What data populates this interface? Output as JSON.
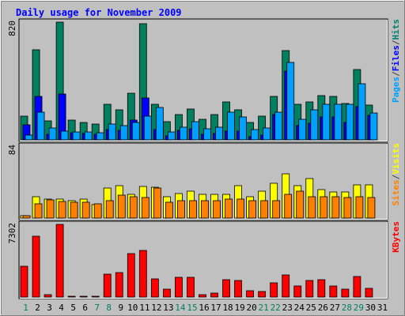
{
  "chart_data": {
    "type": "bar",
    "title": "Daily usage for November 2009",
    "days": [
      "1",
      "2",
      "3",
      "4",
      "5",
      "6",
      "7",
      "8",
      "9",
      "10",
      "11",
      "12",
      "13",
      "14",
      "15",
      "16",
      "17",
      "18",
      "19",
      "20",
      "21",
      "22",
      "23",
      "24",
      "25",
      "26",
      "27",
      "28",
      "29",
      "30",
      "31"
    ],
    "weekend_days": [
      "1",
      "7",
      "8",
      "14",
      "15",
      "21",
      "22",
      "28",
      "29"
    ],
    "panels": [
      {
        "name": "hits-files-pages",
        "scale_label": "820",
        "ymax": 820,
        "right_label": [
          "Pages",
          "/",
          "Files",
          "/",
          "Hits"
        ],
        "right_label_colors": [
          "#00a0ff",
          "#404040",
          "#0000ff",
          "#404040",
          "#00806f"
        ],
        "series": [
          {
            "name": "Hits",
            "color": "#00805f",
            "values": [
              165,
              630,
              130,
              820,
              135,
              120,
              110,
              250,
              210,
              325,
              810,
              250,
              125,
              175,
              215,
              145,
              175,
              265,
              210,
              120,
              165,
              300,
              620,
              245,
              265,
              310,
              300,
              255,
              490,
              240,
              0
            ]
          },
          {
            "name": "Files",
            "color": "#0000ff",
            "values": [
              105,
              305,
              40,
              320,
              50,
              45,
              40,
              70,
              65,
              135,
              290,
              70,
              30,
              65,
              75,
              40,
              45,
              60,
              60,
              20,
              35,
              175,
              480,
              100,
              115,
              160,
              160,
              120,
              230,
              170,
              0
            ]
          },
          {
            "name": "Pages",
            "color": "#00a0ff",
            "values": [
              35,
              195,
              80,
              60,
              55,
              55,
              50,
              110,
              100,
              120,
              165,
              225,
              55,
              90,
              125,
              75,
              90,
              195,
              160,
              70,
              80,
              195,
              540,
              145,
              210,
              245,
              245,
              245,
              390,
              185,
              0
            ]
          }
        ]
      },
      {
        "name": "visits-sites",
        "scale_label": "84",
        "ymax": 84,
        "right_label": [
          "Sites",
          "/",
          "Visits"
        ],
        "right_label_colors": [
          "#ff8000",
          "#404040",
          "#ffff00"
        ],
        "series": [
          {
            "name": "Visits",
            "color": "#ffff00",
            "values": [
              3,
              25,
              22,
              22,
              20,
              22,
              16,
              35,
              38,
              28,
              37,
              36,
              25,
              29,
              31,
              28,
              28,
              28,
              38,
              25,
              31,
              41,
              52,
              38,
              46,
              33,
              30,
              30,
              39,
              39,
              0
            ]
          },
          {
            "name": "Sites",
            "color": "#ff8000",
            "values": [
              3,
              17,
              21,
              19,
              18,
              18,
              17,
              20,
              27,
              25,
              24,
              35,
              18,
              20,
              20,
              20,
              20,
              22,
              22,
              20,
              20,
              20,
              28,
              31,
              25,
              25,
              25,
              24,
              25,
              24,
              0
            ]
          }
        ]
      },
      {
        "name": "kbytes",
        "scale_label": "7302",
        "ymax": 7302,
        "right_label": [
          "KBytes"
        ],
        "right_label_colors": [
          "#ff0000"
        ],
        "series": [
          {
            "name": "KBytes",
            "color": "#ff0000",
            "values": [
              3090,
              6150,
              220,
              7302,
              100,
              80,
              100,
              2320,
              2430,
              4400,
              4680,
              1840,
              820,
              1970,
              2010,
              210,
              360,
              1760,
              1670,
              660,
              540,
              1430,
              2250,
              1120,
              1650,
              1760,
              1120,
              800,
              2050,
              900,
              0
            ]
          }
        ]
      }
    ]
  }
}
